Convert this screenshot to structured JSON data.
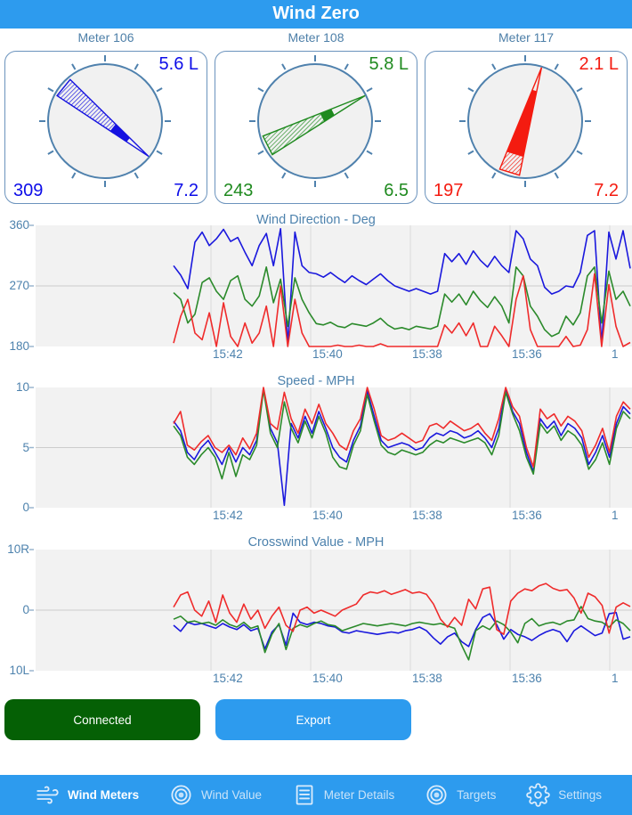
{
  "header": {
    "title": "Wind Zero"
  },
  "meters": [
    {
      "label": "Meter 106",
      "wind_value": "5.6 L",
      "direction": "309",
      "speed": "7.2",
      "color": "#1512e0",
      "dir_deg": 309,
      "hatch_end": 0.58,
      "solid_end": 0.76
    },
    {
      "label": "Meter 108",
      "wind_value": "5.8 L",
      "direction": "243",
      "speed": "6.5",
      "color": "#1f8a1f",
      "dir_deg": 243,
      "hatch_end": 0.56,
      "solid_end": 0.67
    },
    {
      "label": "Meter 117",
      "wind_value": "2.1 L",
      "direction": "197",
      "speed": "7.2",
      "color": "#f41b10",
      "dir_deg": 197,
      "hatch_end": 0.17,
      "solid_end": 0.78
    }
  ],
  "chart_data": [
    {
      "type": "line",
      "title": "Wind Direction - Deg",
      "ylabel_ticks": [
        "360",
        "270",
        "180"
      ],
      "ylim": [
        180,
        360
      ],
      "x_ticks": [
        "15:42",
        "15:40",
        "15:38",
        "15:36",
        "1"
      ],
      "grid": true,
      "legend": "none",
      "series": [
        {
          "name": "Meter 106",
          "color": "#1a18dd",
          "values": [
            300,
            286,
            266,
            335,
            350,
            330,
            340,
            354,
            336,
            342,
            320,
            300,
            330,
            348,
            300,
            355,
            183,
            350,
            300,
            290,
            288,
            283,
            290,
            282,
            275,
            285,
            278,
            272,
            280,
            288,
            278,
            270,
            266,
            262,
            266,
            262,
            258,
            262,
            318,
            306,
            318,
            302,
            322,
            308,
            298,
            314,
            300,
            290,
            352,
            340,
            310,
            300,
            268,
            258,
            262,
            270,
            268,
            290,
            345,
            352,
            183,
            350,
            310,
            352,
            296
          ]
        },
        {
          "name": "Meter 108",
          "color": "#2b8a2b",
          "values": [
            260,
            250,
            215,
            228,
            275,
            282,
            262,
            250,
            278,
            285,
            250,
            240,
            255,
            298,
            245,
            280,
            210,
            282,
            250,
            230,
            214,
            212,
            216,
            210,
            208,
            214,
            212,
            210,
            215,
            222,
            212,
            206,
            208,
            205,
            210,
            208,
            206,
            210,
            258,
            246,
            258,
            242,
            262,
            248,
            238,
            254,
            240,
            215,
            298,
            285,
            240,
            225,
            205,
            195,
            200,
            225,
            212,
            230,
            285,
            298,
            215,
            292,
            250,
            262,
            240
          ]
        },
        {
          "name": "Meter 117",
          "color": "#ef2b2b",
          "values": [
            185,
            225,
            250,
            200,
            190,
            230,
            180,
            245,
            195,
            180,
            215,
            185,
            200,
            240,
            180,
            270,
            180,
            250,
            200,
            180,
            180,
            180,
            180,
            182,
            180,
            180,
            182,
            180,
            180,
            184,
            180,
            180,
            180,
            180,
            180,
            180,
            180,
            180,
            212,
            200,
            215,
            196,
            215,
            180,
            180,
            210,
            196,
            180,
            250,
            285,
            205,
            180,
            180,
            180,
            180,
            195,
            180,
            182,
            205,
            288,
            180,
            272,
            210,
            180,
            186
          ]
        }
      ]
    },
    {
      "type": "line",
      "title": "Speed - MPH",
      "ylabel_ticks": [
        "10",
        "5",
        "0"
      ],
      "ylim": [
        0,
        10
      ],
      "x_ticks": [
        "15:42",
        "15:40",
        "15:38",
        "15:36",
        "1"
      ],
      "grid": true,
      "legend": "none",
      "series": [
        {
          "name": "Meter 106",
          "color": "#1a18dd",
          "values": [
            7.2,
            6.4,
            4.6,
            4.0,
            5.0,
            5.6,
            4.6,
            3.6,
            5.0,
            3.8,
            5.0,
            4.4,
            5.6,
            9.9,
            6.6,
            5.4,
            0.2,
            7.0,
            5.8,
            7.6,
            6.2,
            8.0,
            6.6,
            5.0,
            4.2,
            3.8,
            5.6,
            6.8,
            9.7,
            7.6,
            5.6,
            5.0,
            5.2,
            5.4,
            5.2,
            4.8,
            5.0,
            5.8,
            6.2,
            6.0,
            6.4,
            6.2,
            5.8,
            6.0,
            6.4,
            5.8,
            5.0,
            6.6,
            9.8,
            8.0,
            7.0,
            4.6,
            3.0,
            7.4,
            6.6,
            7.2,
            6.0,
            7.0,
            6.6,
            5.8,
            3.6,
            4.6,
            6.0,
            4.2,
            7.0,
            8.4,
            7.8
          ]
        },
        {
          "name": "Meter 108",
          "color": "#2b8a2b",
          "values": [
            6.8,
            6.0,
            4.2,
            3.6,
            4.4,
            5.0,
            4.2,
            2.4,
            4.6,
            2.6,
            4.4,
            4.0,
            5.2,
            9.8,
            6.2,
            5.0,
            8.8,
            6.6,
            5.4,
            7.2,
            5.8,
            7.6,
            6.2,
            4.2,
            3.4,
            3.2,
            5.2,
            6.4,
            9.4,
            7.2,
            5.2,
            4.6,
            4.4,
            4.8,
            4.6,
            4.4,
            4.6,
            5.2,
            5.6,
            5.4,
            5.8,
            5.6,
            5.4,
            5.6,
            5.8,
            5.4,
            4.4,
            6.0,
            9.6,
            7.8,
            6.4,
            4.2,
            2.8,
            7.0,
            6.2,
            6.8,
            5.6,
            6.4,
            6.0,
            5.2,
            3.2,
            4.0,
            5.4,
            3.6,
            6.6,
            8.0,
            7.4
          ]
        },
        {
          "name": "Meter 117",
          "color": "#ef2b2b",
          "values": [
            7.0,
            8.0,
            5.2,
            4.8,
            5.5,
            6.0,
            5.0,
            4.6,
            5.2,
            4.4,
            5.8,
            4.9,
            6.2,
            10,
            7.0,
            6.5,
            9.6,
            7.4,
            6.2,
            8.2,
            7.0,
            8.6,
            7.0,
            6.2,
            5.2,
            4.8,
            6.4,
            7.4,
            10,
            8.2,
            6.0,
            5.6,
            5.8,
            6.2,
            5.8,
            5.4,
            5.6,
            6.8,
            7.0,
            6.6,
            7.2,
            6.8,
            6.4,
            6.6,
            7.0,
            6.2,
            5.6,
            7.4,
            10,
            8.4,
            7.6,
            5.0,
            3.4,
            8.2,
            7.4,
            7.8,
            6.8,
            7.6,
            7.2,
            6.4,
            4.2,
            5.2,
            6.6,
            4.6,
            7.6,
            8.8,
            8.2
          ]
        }
      ]
    },
    {
      "type": "line",
      "title": "Crosswind Value - MPH",
      "ylabel_ticks": [
        "10R",
        "0",
        "10L"
      ],
      "ylim": [
        -10,
        10
      ],
      "x_ticks": [
        "15:42",
        "15:40",
        "15:38",
        "15:36",
        "1"
      ],
      "grid": true,
      "legend": "none",
      "series": [
        {
          "name": "Meter 106",
          "color": "#1a18dd",
          "values": [
            -2.5,
            -3.5,
            -2.0,
            -2.4,
            -2.2,
            -2.6,
            -3.0,
            -2.2,
            -2.8,
            -3.2,
            -2.4,
            -3.4,
            -3.0,
            -6.4,
            -3.6,
            -2.4,
            -5.8,
            -0.5,
            -2.0,
            -2.4,
            -2.0,
            -2.2,
            -2.6,
            -2.8,
            -3.6,
            -3.8,
            -3.4,
            -3.6,
            -3.8,
            -4.0,
            -3.8,
            -3.6,
            -3.8,
            -3.4,
            -3.2,
            -2.8,
            -3.4,
            -4.6,
            -5.6,
            -4.4,
            -3.8,
            -5.2,
            -6.0,
            -3.2,
            -1.2,
            -0.6,
            -2.4,
            -4.8,
            -3.2,
            -4.0,
            -4.4,
            -5.0,
            -4.2,
            -3.6,
            -3.2,
            -3.6,
            -5.2,
            -3.4,
            -2.6,
            -3.4,
            -4.2,
            -3.8,
            -0.6,
            -0.4,
            -4.8,
            -4.4
          ]
        },
        {
          "name": "Meter 108",
          "color": "#2b8a2b",
          "values": [
            -1.5,
            -1.0,
            -2.0,
            -1.8,
            -2.2,
            -2.0,
            -2.5,
            -1.6,
            -2.4,
            -2.8,
            -2.0,
            -3.0,
            -2.6,
            -7.0,
            -4.0,
            -2.2,
            -6.5,
            -3.0,
            -2.4,
            -2.8,
            -2.2,
            -1.8,
            -2.4,
            -2.6,
            -3.4,
            -3.0,
            -2.6,
            -2.2,
            -2.4,
            -2.6,
            -2.4,
            -2.2,
            -2.4,
            -2.6,
            -2.2,
            -2.0,
            -2.2,
            -2.4,
            -2.2,
            -2.6,
            -3.0,
            -5.8,
            -8.2,
            -3.4,
            -2.6,
            -3.2,
            -1.8,
            -2.4,
            -3.6,
            -5.4,
            -2.2,
            -1.4,
            -2.6,
            -2.2,
            -2.0,
            -2.4,
            -1.8,
            -1.6,
            0.6,
            -1.4,
            -1.8,
            -2.0,
            -2.8,
            -1.6,
            -2.2,
            -3.4
          ]
        },
        {
          "name": "Meter 117",
          "color": "#ef2b2b",
          "values": [
            0.5,
            2.5,
            3.0,
            0.0,
            -1.0,
            1.5,
            -2.0,
            2.5,
            -0.5,
            -2.0,
            1.0,
            -1.5,
            0.0,
            -3.0,
            -1.0,
            0.5,
            -2.5,
            -3.5,
            0.0,
            0.5,
            -0.5,
            0.0,
            -0.5,
            -1.0,
            0.0,
            0.5,
            1.0,
            2.5,
            3.0,
            2.8,
            3.2,
            2.6,
            3.0,
            3.4,
            2.8,
            3.0,
            2.6,
            1.0,
            -1.5,
            -2.8,
            -1.2,
            -2.5,
            1.8,
            0.2,
            3.5,
            3.8,
            -3.2,
            -4.0,
            1.5,
            2.8,
            3.5,
            3.2,
            4.0,
            4.4,
            3.6,
            3.2,
            3.4,
            2.0,
            -0.5,
            2.8,
            2.2,
            0.8,
            -3.8,
            0.5,
            1.2,
            0.6
          ]
        }
      ]
    }
  ],
  "buttons": {
    "connected": "Connected",
    "export": "Export",
    "connected_bg": "#056005",
    "export_bg": "#2d9bee"
  },
  "tabbar": {
    "background": "#2d9bee",
    "items": [
      {
        "label": "Wind Meters",
        "icon": "wind-icon",
        "active": true
      },
      {
        "label": "Wind Value",
        "icon": "target-icon",
        "active": false
      },
      {
        "label": "Meter Details",
        "icon": "list-icon",
        "active": false
      },
      {
        "label": "Targets",
        "icon": "target-icon",
        "active": false
      },
      {
        "label": "Settings",
        "icon": "gear-icon",
        "active": false
      }
    ]
  },
  "colors": {
    "header_bg": "#2d9bee",
    "axis_label": "#4d82ad",
    "plot_bg": "#f2f2f2",
    "gauge_ring": "#4f81ad"
  }
}
